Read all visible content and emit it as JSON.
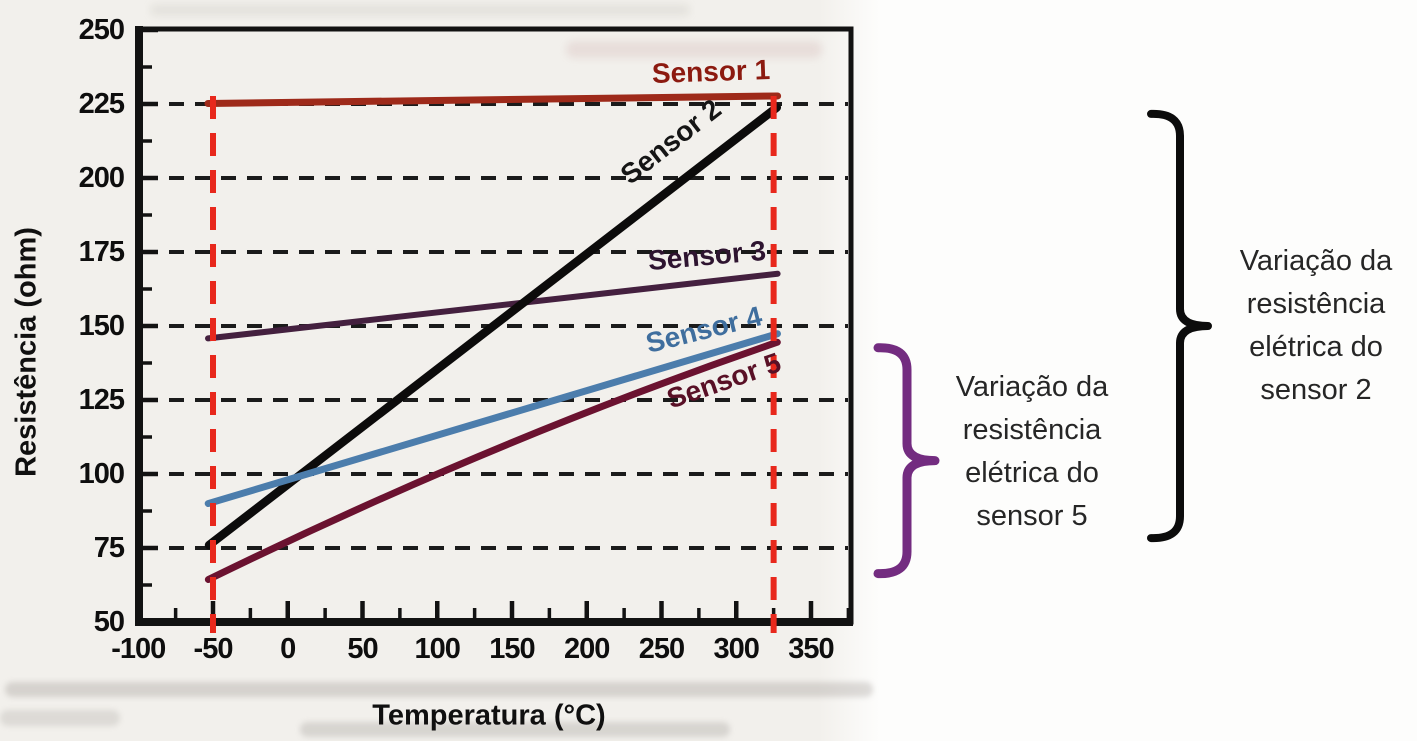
{
  "chart_data": {
    "type": "line",
    "title": "",
    "xlabel": "Temperatura (°C)",
    "ylabel": "Resistência (ohm)",
    "xlim": [
      -106,
      378
    ],
    "ylim": [
      50,
      250
    ],
    "xticks": {
      "values": [
        -100,
        -50,
        0,
        50,
        100,
        150,
        200,
        250,
        300,
        350
      ],
      "labels": [
        "-100",
        "-50",
        "0",
        "50",
        "100",
        "150",
        "200",
        "250",
        "300",
        "350"
      ],
      "minor_values": [
        -75,
        -25,
        25,
        75,
        125,
        175,
        225,
        275,
        325,
        375
      ]
    },
    "yticks": {
      "values": [
        250,
        225,
        200,
        175,
        150,
        125,
        100,
        75,
        50
      ],
      "labels": [
        "250",
        "225",
        "200",
        "175",
        "150",
        "125",
        "100",
        "75",
        "50"
      ],
      "minor_values": [
        237.5,
        212.5,
        187.5,
        162.5,
        137.5,
        112.5,
        87.5,
        62.5
      ]
    },
    "grid": {
      "style": "dashed",
      "color": "#1b1b1b",
      "horizontal_at": [
        225,
        200,
        175,
        150,
        125,
        100,
        75
      ]
    },
    "reference_lines": {
      "style": "dashed",
      "color": "#e8281c",
      "x_values": [
        -50,
        325
      ]
    },
    "series": [
      {
        "name": "Sensor 1",
        "color": "#9e2a1a",
        "label_color": "#8c1a10",
        "x": [
          -50,
          325
        ],
        "y": [
          225.2,
          227.7
        ]
      },
      {
        "name": "Sensor 2",
        "color": "#0c0b0b",
        "label_color": "#151515",
        "x": [
          -50,
          325
        ],
        "y": [
          77,
          223
        ]
      },
      {
        "name": "Sensor 3",
        "color": "#44203f",
        "label_color": "#2e1430",
        "x": [
          -50,
          325
        ],
        "y": [
          146,
          167.5
        ]
      },
      {
        "name": "Sensor 4",
        "color": "#4c7dac",
        "label_color": "#3f6e9e",
        "x": [
          -50,
          325
        ],
        "y": [
          90.5,
          147
        ]
      },
      {
        "name": "Sensor 5",
        "color": "#6b1230",
        "label_color": "#591026",
        "x": [
          -50,
          325
        ],
        "y": [
          65,
          144
        ],
        "bow": 3.5
      }
    ],
    "legend_position": "labels-on-lines"
  },
  "annotations": {
    "sensor5": {
      "brace_color": "#732c80",
      "range_ohm": [
        65,
        144
      ],
      "lines": [
        "Variação da",
        "resistência",
        "elétrica do",
        "sensor 5"
      ]
    },
    "sensor2": {
      "brace_color": "#0c0c0c",
      "range_ohm": [
        77,
        223
      ],
      "lines": [
        "Variação da",
        "resistência",
        "elétrica do",
        "sensor 2"
      ]
    }
  }
}
